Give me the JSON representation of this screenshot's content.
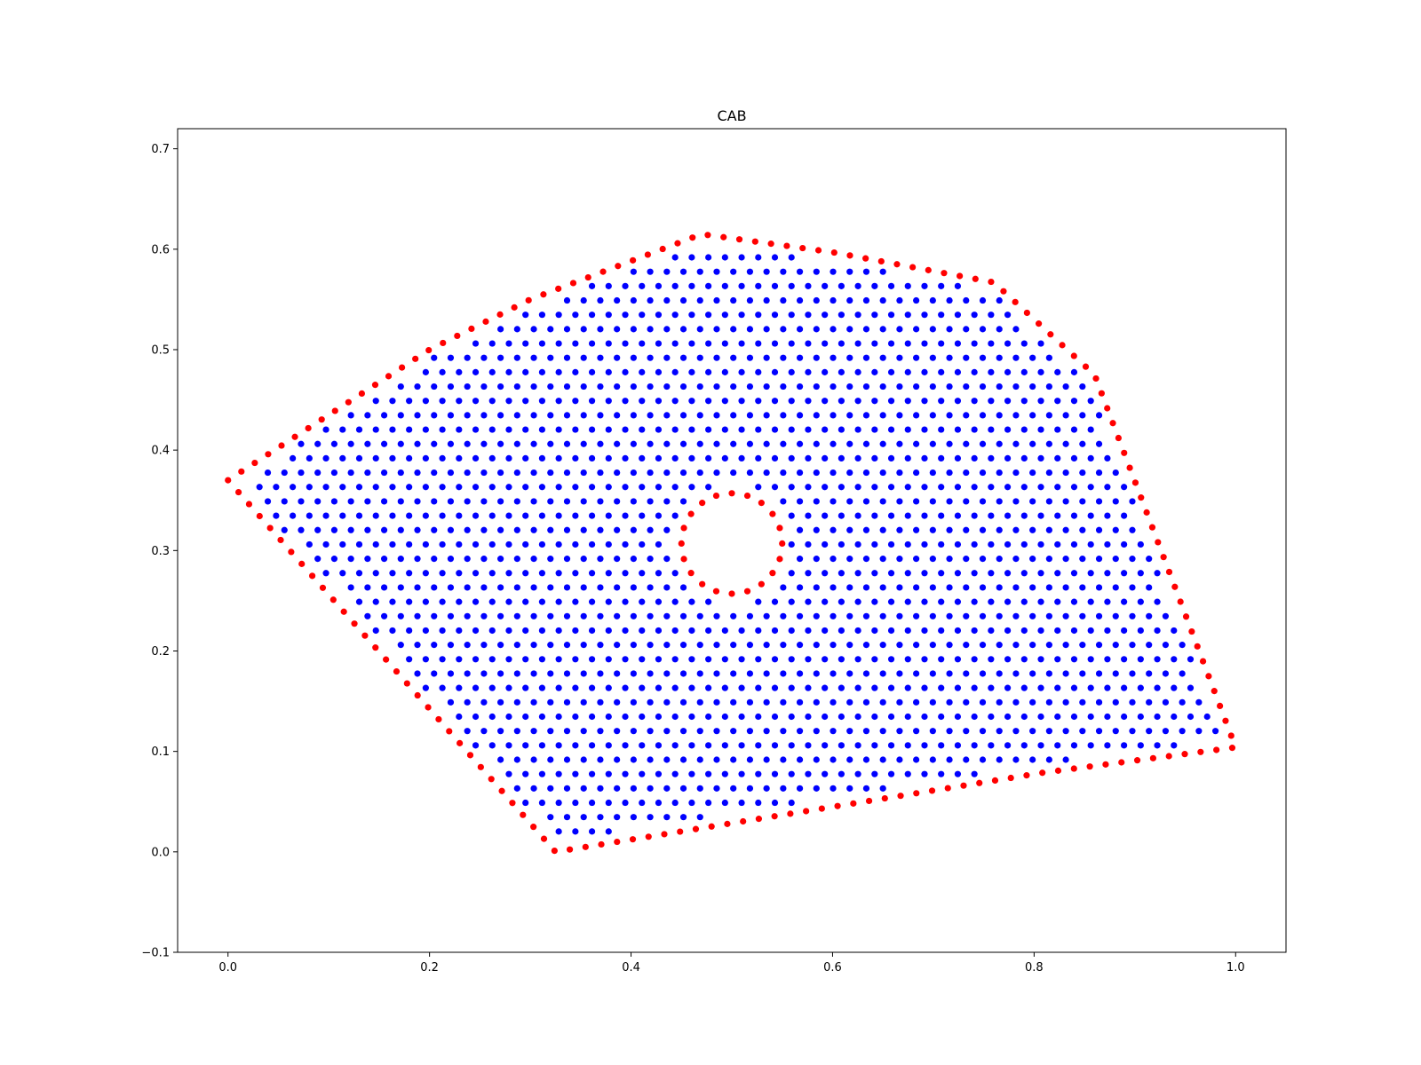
{
  "chart_data": {
    "type": "scatter",
    "title": "CAB",
    "xlabel": "",
    "ylabel": "",
    "xlim": [
      -0.05,
      1.05
    ],
    "ylim": [
      -0.1,
      0.72
    ],
    "xticks": [
      "0.0",
      "0.2",
      "0.4",
      "0.6",
      "0.8",
      "1.0"
    ],
    "yticks": [
      "−0.1",
      "0.0",
      "0.1",
      "0.2",
      "0.3",
      "0.4",
      "0.5",
      "0.6",
      "0.7"
    ],
    "grid": false,
    "series": [
      {
        "color": "#0000ff",
        "points": "interior",
        "spacing": 0.0165,
        "region": {
          "outer_polygon": [
            [
              0.0,
              0.37
            ],
            [
              0.2,
              0.5
            ],
            [
              0.3,
              0.55
            ],
            [
              0.47,
              0.615
            ],
            [
              0.6,
              0.597
            ],
            [
              0.76,
              0.567
            ],
            [
              0.86,
              0.475
            ],
            [
              1.0,
              0.104
            ],
            [
              0.81,
              0.079
            ],
            [
              0.325,
              0.0
            ]
          ],
          "hole_center": [
            0.5,
            0.307
          ],
          "hole_radius": 0.05
        }
      },
      {
        "color": "#ff0000",
        "points": "boundary",
        "outer_vertices": [
          [
            0.0,
            0.37
          ],
          [
            0.2,
            0.5
          ],
          [
            0.3,
            0.55
          ],
          [
            0.47,
            0.615
          ],
          [
            0.6,
            0.597
          ],
          [
            0.76,
            0.567
          ],
          [
            0.86,
            0.475
          ],
          [
            1.0,
            0.104
          ],
          [
            0.81,
            0.079
          ],
          [
            0.325,
            0.0
          ]
        ],
        "outer_points_count": 160,
        "hole_center": [
          0.5,
          0.307
        ],
        "hole_radius": 0.05,
        "hole_points_count": 20
      }
    ]
  }
}
